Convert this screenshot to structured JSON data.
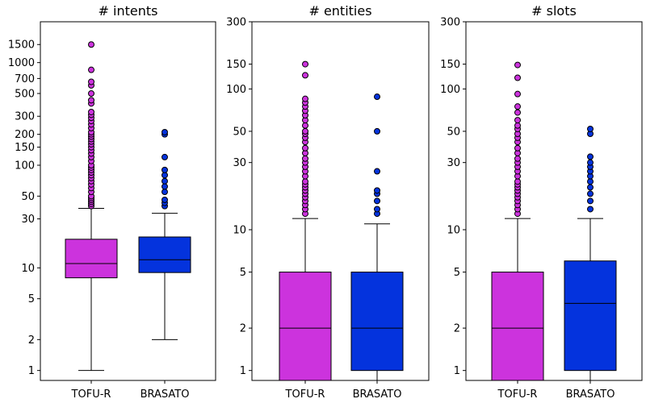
{
  "chart_data": [
    {
      "type": "boxplot",
      "title": "# intents",
      "yscale": "log",
      "ylim": [
        0.8,
        2500
      ],
      "yticks": [
        1,
        2,
        5,
        10,
        30,
        50,
        100,
        150,
        200,
        300,
        500,
        700,
        1000,
        1500
      ],
      "ytick_labels": [
        "1",
        "2",
        "5",
        "10",
        "30",
        "50",
        "100",
        "150",
        "200",
        "300",
        "500",
        "700",
        "1000",
        "1500"
      ],
      "categories": [
        "TOFU-R",
        "BRASATO"
      ],
      "colors": [
        "#cc33dd",
        "#0433dd"
      ],
      "boxes": [
        {
          "whislo": 1,
          "q1": 8,
          "med": 11,
          "q3": 19,
          "whishi": 38,
          "fliers": [
            40,
            42,
            44,
            46,
            48,
            50,
            55,
            60,
            65,
            70,
            75,
            80,
            85,
            90,
            95,
            100,
            110,
            120,
            130,
            140,
            150,
            160,
            170,
            180,
            190,
            200,
            210,
            230,
            250,
            270,
            290,
            310,
            330,
            400,
            430,
            500,
            600,
            650,
            850,
            1500
          ]
        },
        {
          "whislo": 2,
          "q1": 9,
          "med": 12,
          "q3": 20,
          "whishi": 34,
          "fliers": [
            40,
            43,
            46,
            55,
            62,
            70,
            80,
            90,
            120,
            200,
            210
          ]
        }
      ]
    },
    {
      "type": "boxplot",
      "title": "# entities",
      "yscale": "log",
      "ylim": [
        0.85,
        300
      ],
      "yticks": [
        1,
        2,
        5,
        10,
        30,
        50,
        100,
        150,
        300
      ],
      "ytick_labels": [
        "1",
        "2",
        "5",
        "10",
        "30",
        "50",
        "100",
        "150",
        "300"
      ],
      "categories": [
        "TOFU-R",
        "BRASATO"
      ],
      "colors": [
        "#cc33dd",
        "#0433dd"
      ],
      "boxes": [
        {
          "whislo": 0.85,
          "q1": 0.85,
          "med": 2,
          "q3": 5,
          "whishi": 12,
          "fliers": [
            13,
            14,
            15,
            16,
            17,
            18,
            19,
            20,
            21,
            22,
            24,
            26,
            28,
            30,
            32,
            35,
            38,
            42,
            45,
            48,
            50,
            55,
            60,
            65,
            70,
            75,
            80,
            85,
            125,
            150
          ]
        },
        {
          "whislo": 0.85,
          "q1": 1,
          "med": 2,
          "q3": 5,
          "whishi": 11,
          "fliers": [
            13,
            14,
            16,
            18,
            19,
            26,
            50,
            88
          ]
        }
      ]
    },
    {
      "type": "boxplot",
      "title": "# slots",
      "yscale": "log",
      "ylim": [
        0.85,
        300
      ],
      "yticks": [
        1,
        2,
        5,
        10,
        30,
        50,
        100,
        150,
        300
      ],
      "ytick_labels": [
        "1",
        "2",
        "5",
        "10",
        "30",
        "50",
        "100",
        "150",
        "300"
      ],
      "categories": [
        "TOFU-R",
        "BRASATO"
      ],
      "colors": [
        "#cc33dd",
        "#0433dd"
      ],
      "boxes": [
        {
          "whislo": 0.85,
          "q1": 0.85,
          "med": 2,
          "q3": 5,
          "whishi": 12,
          "fliers": [
            13,
            14,
            15,
            16,
            17,
            18,
            19,
            20,
            21,
            22,
            24,
            26,
            28,
            30,
            32,
            35,
            38,
            42,
            45,
            48,
            52,
            55,
            60,
            68,
            75,
            92,
            120,
            148
          ]
        },
        {
          "whislo": 0.85,
          "q1": 1,
          "med": 3,
          "q3": 6,
          "whishi": 12,
          "fliers": [
            14,
            16,
            18,
            20,
            22,
            24,
            26,
            28,
            30,
            33,
            48,
            52
          ]
        }
      ]
    }
  ]
}
